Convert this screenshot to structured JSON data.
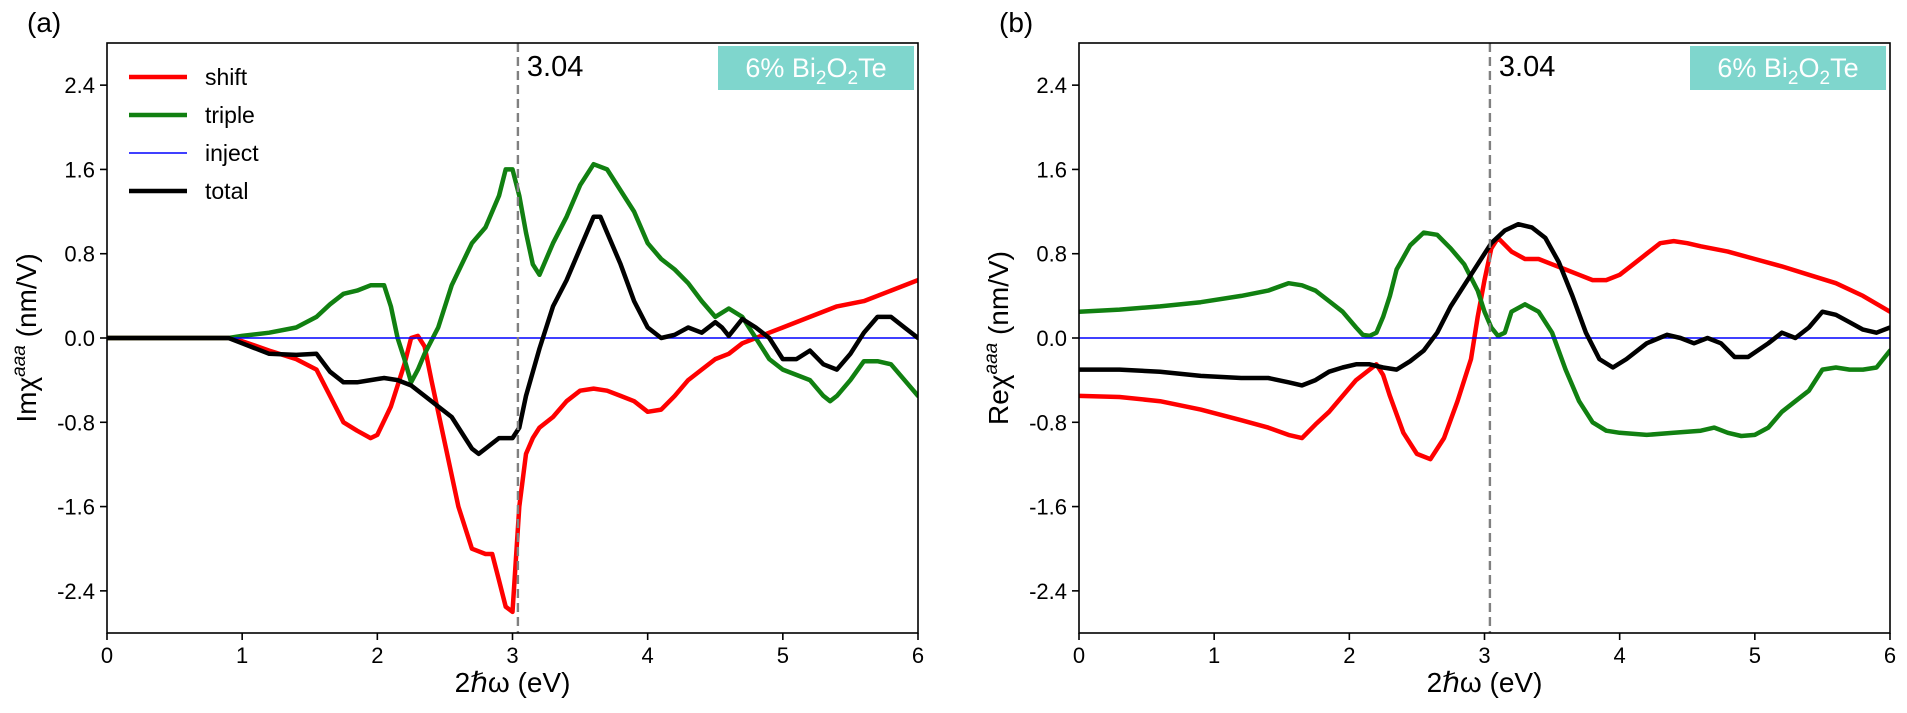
{
  "chart_data": [
    {
      "type": "line",
      "panel_label": "(a)",
      "xlabel": "2ℏω (eV)",
      "ylabel_main": "Imχ",
      "ylabel_sup": "aaa",
      "ylabel_unit": " (nm/V)",
      "xlim": [
        0,
        6
      ],
      "ylim": [
        -2.8,
        2.8
      ],
      "xticks": [
        0,
        1,
        2,
        3,
        4,
        5,
        6
      ],
      "yticks": [
        -2.4,
        -1.6,
        -0.8,
        0.0,
        0.8,
        1.6,
        2.4
      ],
      "grid": false,
      "legend_position": "top-left",
      "vline": {
        "x": 3.04,
        "label": "3.04"
      },
      "badge": {
        "prefix": "6% Bi",
        "sub1": "2",
        "mid": "O",
        "sub2": "2",
        "suffix": "Te",
        "color": "#7fd6cd"
      },
      "series": [
        {
          "name": "shift",
          "color": "#ff0000",
          "x": [
            0,
            0.5,
            0.9,
            1.0,
            1.2,
            1.4,
            1.55,
            1.65,
            1.75,
            1.85,
            1.95,
            2.0,
            2.1,
            2.2,
            2.25,
            2.3,
            2.35,
            2.4,
            2.5,
            2.6,
            2.7,
            2.8,
            2.85,
            2.9,
            2.95,
            3.0,
            3.05,
            3.1,
            3.15,
            3.2,
            3.3,
            3.4,
            3.5,
            3.6,
            3.7,
            3.8,
            3.9,
            4.0,
            4.1,
            4.2,
            4.3,
            4.4,
            4.5,
            4.6,
            4.7,
            4.8,
            4.9,
            5.0,
            5.2,
            5.4,
            5.6,
            5.8,
            6.0
          ],
          "y": [
            0,
            0,
            0,
            -0.03,
            -0.12,
            -0.2,
            -0.3,
            -0.55,
            -0.8,
            -0.88,
            -0.95,
            -0.92,
            -0.65,
            -0.25,
            0.0,
            0.02,
            -0.08,
            -0.4,
            -1.0,
            -1.6,
            -2.0,
            -2.05,
            -2.05,
            -2.3,
            -2.55,
            -2.6,
            -1.6,
            -1.1,
            -0.95,
            -0.85,
            -0.75,
            -0.6,
            -0.5,
            -0.48,
            -0.5,
            -0.55,
            -0.6,
            -0.7,
            -0.68,
            -0.55,
            -0.4,
            -0.3,
            -0.2,
            -0.15,
            -0.05,
            0.0,
            0.05,
            0.1,
            0.2,
            0.3,
            0.35,
            0.45,
            0.55
          ]
        },
        {
          "name": "triple",
          "color": "#118011",
          "x": [
            0,
            0.5,
            0.9,
            1.0,
            1.2,
            1.4,
            1.55,
            1.65,
            1.75,
            1.85,
            1.95,
            2.05,
            2.1,
            2.15,
            2.2,
            2.25,
            2.3,
            2.35,
            2.45,
            2.55,
            2.7,
            2.8,
            2.9,
            2.95,
            3.0,
            3.05,
            3.1,
            3.15,
            3.2,
            3.3,
            3.4,
            3.5,
            3.6,
            3.7,
            3.8,
            3.9,
            4.0,
            4.1,
            4.2,
            4.3,
            4.4,
            4.5,
            4.6,
            4.7,
            4.75,
            4.8,
            4.9,
            5.0,
            5.1,
            5.2,
            5.3,
            5.35,
            5.4,
            5.5,
            5.6,
            5.7,
            5.8,
            5.9,
            6.0
          ],
          "y": [
            0,
            0,
            0,
            0.02,
            0.05,
            0.1,
            0.2,
            0.32,
            0.42,
            0.45,
            0.5,
            0.5,
            0.3,
            0.0,
            -0.2,
            -0.42,
            -0.3,
            -0.15,
            0.1,
            0.5,
            0.9,
            1.05,
            1.35,
            1.6,
            1.6,
            1.35,
            1.0,
            0.7,
            0.6,
            0.9,
            1.15,
            1.45,
            1.65,
            1.6,
            1.4,
            1.2,
            0.9,
            0.75,
            0.65,
            0.52,
            0.35,
            0.2,
            0.28,
            0.2,
            0.1,
            0.0,
            -0.2,
            -0.3,
            -0.35,
            -0.4,
            -0.55,
            -0.6,
            -0.55,
            -0.4,
            -0.22,
            -0.22,
            -0.25,
            -0.4,
            -0.55
          ]
        },
        {
          "name": "inject",
          "color": "#0000ff",
          "x": [
            0,
            6
          ],
          "y": [
            0,
            0
          ]
        },
        {
          "name": "total",
          "color": "#000000",
          "x": [
            0,
            0.5,
            0.9,
            1.0,
            1.2,
            1.4,
            1.55,
            1.65,
            1.75,
            1.85,
            1.95,
            2.05,
            2.15,
            2.25,
            2.35,
            2.45,
            2.55,
            2.65,
            2.7,
            2.75,
            2.8,
            2.85,
            2.9,
            2.95,
            3.0,
            3.05,
            3.1,
            3.2,
            3.3,
            3.4,
            3.5,
            3.6,
            3.65,
            3.7,
            3.8,
            3.9,
            4.0,
            4.1,
            4.2,
            4.3,
            4.4,
            4.5,
            4.55,
            4.6,
            4.7,
            4.8,
            4.9,
            5.0,
            5.1,
            5.2,
            5.3,
            5.4,
            5.5,
            5.6,
            5.7,
            5.8,
            5.9,
            6.0
          ],
          "y": [
            0,
            0,
            0,
            -0.05,
            -0.15,
            -0.16,
            -0.15,
            -0.32,
            -0.42,
            -0.42,
            -0.4,
            -0.38,
            -0.4,
            -0.45,
            -0.55,
            -0.65,
            -0.75,
            -0.95,
            -1.05,
            -1.1,
            -1.05,
            -1.0,
            -0.95,
            -0.95,
            -0.95,
            -0.85,
            -0.55,
            -0.1,
            0.3,
            0.55,
            0.85,
            1.15,
            1.15,
            1.0,
            0.7,
            0.35,
            0.1,
            0.0,
            0.03,
            0.1,
            0.05,
            0.15,
            0.1,
            0.02,
            0.18,
            0.1,
            0.0,
            -0.2,
            -0.2,
            -0.12,
            -0.25,
            -0.3,
            -0.15,
            0.05,
            0.2,
            0.2,
            0.1,
            0.0
          ]
        }
      ]
    },
    {
      "type": "line",
      "panel_label": "(b)",
      "xlabel": "2ℏω (eV)",
      "ylabel_main": "Reχ",
      "ylabel_sup": "aaa",
      "ylabel_unit": " (nm/V)",
      "xlim": [
        0,
        6
      ],
      "ylim": [
        -2.8,
        2.8
      ],
      "xticks": [
        0,
        1,
        2,
        3,
        4,
        5,
        6
      ],
      "yticks": [
        -2.4,
        -1.6,
        -0.8,
        0.0,
        0.8,
        1.6,
        2.4
      ],
      "grid": false,
      "vline": {
        "x": 3.04,
        "label": "3.04"
      },
      "badge": {
        "prefix": "6% Bi",
        "sub1": "2",
        "mid": "O",
        "sub2": "2",
        "suffix": "Te",
        "color": "#7fd6cd"
      },
      "series": [
        {
          "name": "shift",
          "color": "#ff0000",
          "x": [
            0,
            0.3,
            0.6,
            0.9,
            1.2,
            1.4,
            1.55,
            1.65,
            1.75,
            1.85,
            1.95,
            2.05,
            2.15,
            2.2,
            2.25,
            2.3,
            2.4,
            2.5,
            2.6,
            2.7,
            2.8,
            2.9,
            2.95,
            3.0,
            3.05,
            3.1,
            3.2,
            3.3,
            3.4,
            3.5,
            3.6,
            3.7,
            3.8,
            3.9,
            4.0,
            4.1,
            4.2,
            4.3,
            4.4,
            4.5,
            4.6,
            4.8,
            5.0,
            5.2,
            5.4,
            5.6,
            5.8,
            6.0
          ],
          "y": [
            -0.55,
            -0.56,
            -0.6,
            -0.68,
            -0.78,
            -0.85,
            -0.92,
            -0.95,
            -0.82,
            -0.7,
            -0.55,
            -0.4,
            -0.3,
            -0.25,
            -0.35,
            -0.55,
            -0.9,
            -1.1,
            -1.15,
            -0.95,
            -0.6,
            -0.2,
            0.2,
            0.55,
            0.85,
            0.95,
            0.82,
            0.75,
            0.75,
            0.7,
            0.65,
            0.6,
            0.55,
            0.55,
            0.6,
            0.7,
            0.8,
            0.9,
            0.92,
            0.9,
            0.87,
            0.82,
            0.75,
            0.68,
            0.6,
            0.52,
            0.4,
            0.25
          ]
        },
        {
          "name": "triple",
          "color": "#118011",
          "x": [
            0,
            0.3,
            0.6,
            0.9,
            1.2,
            1.4,
            1.55,
            1.65,
            1.75,
            1.85,
            1.95,
            2.05,
            2.1,
            2.15,
            2.2,
            2.25,
            2.3,
            2.35,
            2.45,
            2.55,
            2.65,
            2.75,
            2.85,
            2.95,
            3.0,
            3.05,
            3.1,
            3.15,
            3.2,
            3.3,
            3.4,
            3.5,
            3.6,
            3.7,
            3.8,
            3.9,
            4.0,
            4.2,
            4.4,
            4.6,
            4.7,
            4.8,
            4.9,
            5.0,
            5.1,
            5.2,
            5.3,
            5.4,
            5.5,
            5.6,
            5.7,
            5.8,
            5.9,
            6.0
          ],
          "y": [
            0.25,
            0.27,
            0.3,
            0.34,
            0.4,
            0.45,
            0.52,
            0.5,
            0.45,
            0.35,
            0.25,
            0.1,
            0.03,
            0.02,
            0.05,
            0.2,
            0.4,
            0.65,
            0.88,
            1.0,
            0.98,
            0.85,
            0.7,
            0.45,
            0.25,
            0.1,
            0.02,
            0.05,
            0.25,
            0.32,
            0.25,
            0.05,
            -0.3,
            -0.6,
            -0.8,
            -0.88,
            -0.9,
            -0.92,
            -0.9,
            -0.88,
            -0.85,
            -0.9,
            -0.93,
            -0.92,
            -0.85,
            -0.7,
            -0.6,
            -0.5,
            -0.3,
            -0.28,
            -0.3,
            -0.3,
            -0.28,
            -0.12
          ]
        },
        {
          "name": "inject",
          "color": "#0000ff",
          "x": [
            0,
            6
          ],
          "y": [
            0,
            0
          ]
        },
        {
          "name": "total",
          "color": "#000000",
          "x": [
            0,
            0.3,
            0.6,
            0.9,
            1.2,
            1.4,
            1.55,
            1.65,
            1.75,
            1.85,
            1.95,
            2.05,
            2.15,
            2.25,
            2.35,
            2.45,
            2.55,
            2.65,
            2.75,
            2.85,
            2.95,
            3.05,
            3.15,
            3.25,
            3.35,
            3.45,
            3.55,
            3.65,
            3.75,
            3.85,
            3.95,
            4.05,
            4.2,
            4.35,
            4.45,
            4.55,
            4.65,
            4.75,
            4.85,
            4.95,
            5.1,
            5.2,
            5.3,
            5.4,
            5.5,
            5.6,
            5.7,
            5.8,
            5.9,
            6.0
          ],
          "y": [
            -0.3,
            -0.3,
            -0.32,
            -0.36,
            -0.38,
            -0.38,
            -0.42,
            -0.45,
            -0.4,
            -0.32,
            -0.28,
            -0.25,
            -0.25,
            -0.28,
            -0.3,
            -0.22,
            -0.12,
            0.05,
            0.3,
            0.5,
            0.7,
            0.9,
            1.02,
            1.08,
            1.05,
            0.95,
            0.72,
            0.4,
            0.05,
            -0.2,
            -0.28,
            -0.2,
            -0.05,
            0.03,
            0.0,
            -0.05,
            0.0,
            -0.05,
            -0.18,
            -0.18,
            -0.05,
            0.05,
            0.0,
            0.1,
            0.25,
            0.22,
            0.15,
            0.08,
            0.05,
            0.1
          ]
        }
      ]
    }
  ]
}
